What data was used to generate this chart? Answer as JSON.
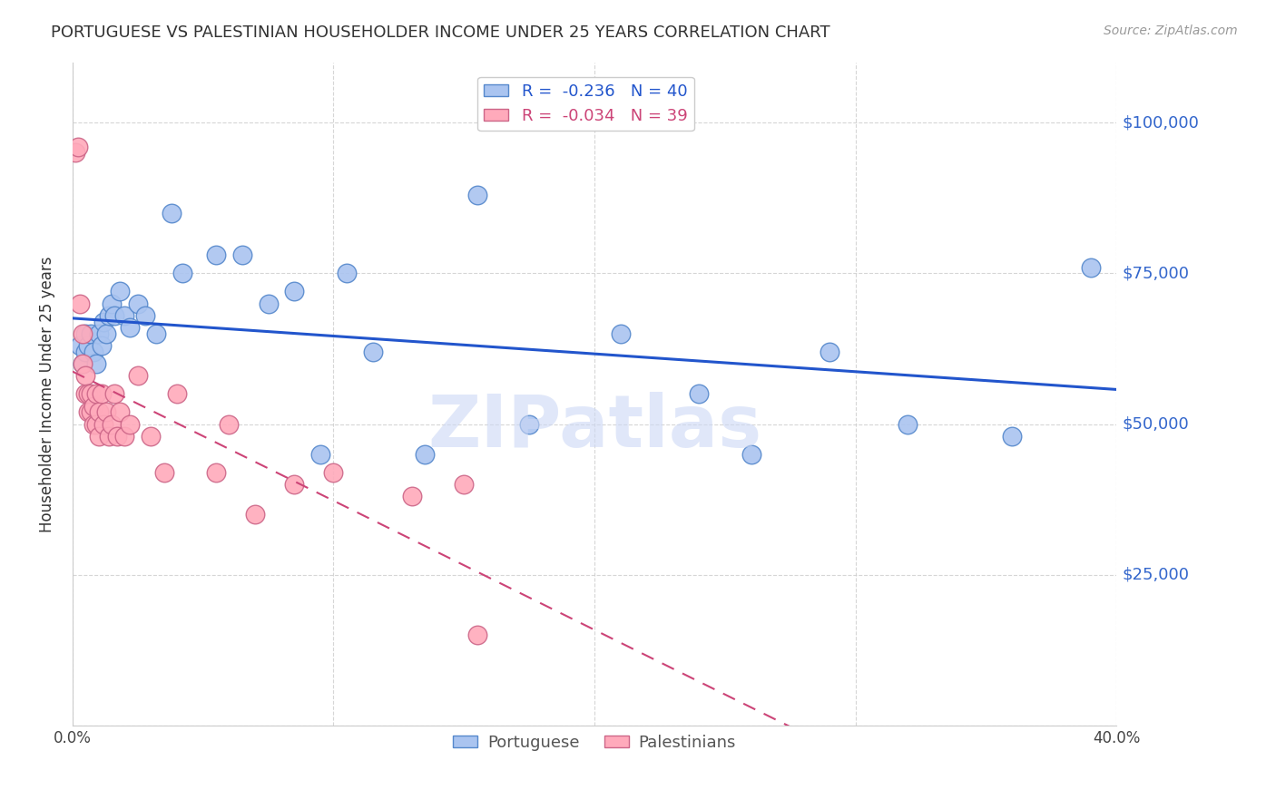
{
  "title": "PORTUGUESE VS PALESTINIAN HOUSEHOLDER INCOME UNDER 25 YEARS CORRELATION CHART",
  "source": "Source: ZipAtlas.com",
  "ylabel": "Householder Income Under 25 years",
  "xlim": [
    0.0,
    0.4
  ],
  "ylim": [
    0,
    110000
  ],
  "background_color": "#ffffff",
  "portuguese": {
    "color": "#aac4f0",
    "edge_color": "#5588cc",
    "R": -0.236,
    "N": 40,
    "line_color": "#2255cc",
    "x": [
      0.003,
      0.004,
      0.005,
      0.005,
      0.006,
      0.007,
      0.008,
      0.009,
      0.01,
      0.011,
      0.012,
      0.013,
      0.014,
      0.015,
      0.016,
      0.018,
      0.02,
      0.022,
      0.025,
      0.028,
      0.032,
      0.038,
      0.042,
      0.055,
      0.065,
      0.075,
      0.085,
      0.095,
      0.105,
      0.115,
      0.135,
      0.155,
      0.175,
      0.21,
      0.24,
      0.26,
      0.29,
      0.32,
      0.36,
      0.39
    ],
    "y": [
      63000,
      60000,
      65000,
      62000,
      63000,
      65000,
      62000,
      60000,
      65000,
      63000,
      67000,
      65000,
      68000,
      70000,
      68000,
      72000,
      68000,
      66000,
      70000,
      68000,
      65000,
      85000,
      75000,
      78000,
      78000,
      70000,
      72000,
      45000,
      75000,
      62000,
      45000,
      88000,
      50000,
      65000,
      55000,
      45000,
      62000,
      50000,
      48000,
      76000
    ]
  },
  "palestinians": {
    "color": "#ffaabb",
    "edge_color": "#cc6688",
    "R": -0.034,
    "N": 39,
    "line_color": "#cc4477",
    "x": [
      0.001,
      0.002,
      0.003,
      0.004,
      0.004,
      0.005,
      0.005,
      0.006,
      0.006,
      0.007,
      0.007,
      0.008,
      0.008,
      0.009,
      0.009,
      0.01,
      0.01,
      0.011,
      0.012,
      0.013,
      0.014,
      0.015,
      0.016,
      0.017,
      0.018,
      0.02,
      0.022,
      0.025,
      0.03,
      0.035,
      0.04,
      0.055,
      0.06,
      0.07,
      0.085,
      0.1,
      0.13,
      0.15,
      0.155
    ],
    "y": [
      95000,
      96000,
      70000,
      60000,
      65000,
      55000,
      58000,
      52000,
      55000,
      52000,
      55000,
      50000,
      53000,
      50000,
      55000,
      48000,
      52000,
      55000,
      50000,
      52000,
      48000,
      50000,
      55000,
      48000,
      52000,
      48000,
      50000,
      58000,
      48000,
      42000,
      55000,
      42000,
      50000,
      35000,
      40000,
      42000,
      38000,
      40000,
      15000
    ]
  },
  "watermark": "ZIPatlas"
}
